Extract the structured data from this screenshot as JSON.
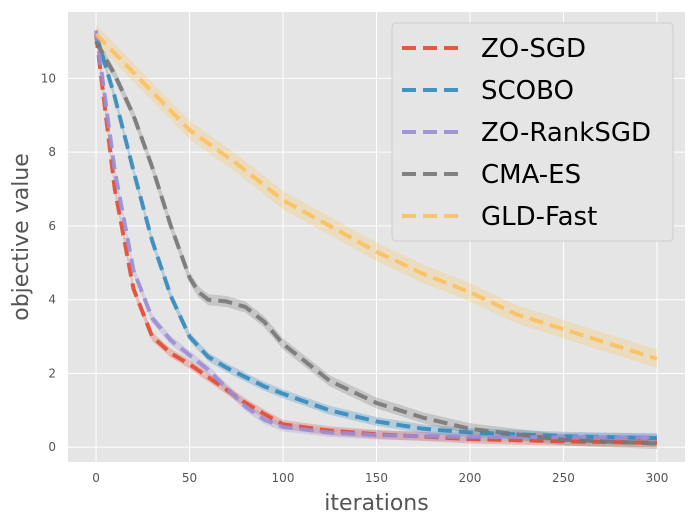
{
  "chart_data": {
    "type": "line",
    "title": "",
    "xlabel": "iterations",
    "ylabel": "objective value",
    "xlim": [
      -15,
      315
    ],
    "ylim": [
      -0.4,
      11.8
    ],
    "xticks": [
      0,
      50,
      100,
      150,
      200,
      250,
      300
    ],
    "yticks": [
      0,
      2,
      4,
      6,
      8,
      10
    ],
    "grid": true,
    "legend_position": "top-right",
    "series": [
      {
        "name": "ZO-SGD",
        "color": "#E24A33",
        "band": 0.12,
        "x": [
          0,
          10,
          20,
          30,
          40,
          50,
          60,
          70,
          80,
          90,
          100,
          125,
          150,
          175,
          200,
          250,
          300
        ],
        "values": [
          11.2,
          7.0,
          4.3,
          3.0,
          2.55,
          2.25,
          1.9,
          1.55,
          1.2,
          0.9,
          0.62,
          0.45,
          0.35,
          0.29,
          0.22,
          0.16,
          0.12
        ]
      },
      {
        "name": "SCOBO",
        "color": "#348ABD",
        "band": 0.12,
        "x": [
          0,
          10,
          20,
          30,
          40,
          50,
          60,
          70,
          80,
          90,
          100,
          125,
          150,
          175,
          200,
          250,
          300
        ],
        "values": [
          11.2,
          9.5,
          7.5,
          5.6,
          4.1,
          3.0,
          2.45,
          2.15,
          1.9,
          1.65,
          1.45,
          1.0,
          0.7,
          0.5,
          0.4,
          0.3,
          0.25
        ]
      },
      {
        "name": "ZO-RankSGD",
        "color": "#988ED5",
        "band": 0.12,
        "x": [
          0,
          10,
          20,
          30,
          40,
          50,
          60,
          70,
          80,
          90,
          100,
          125,
          150,
          175,
          200,
          250,
          300
        ],
        "values": [
          11.3,
          7.5,
          4.8,
          3.5,
          2.9,
          2.5,
          2.1,
          1.6,
          1.1,
          0.75,
          0.55,
          0.4,
          0.33,
          0.3,
          0.28,
          0.27,
          0.27
        ]
      },
      {
        "name": "CMA-ES",
        "color": "#777777",
        "band": 0.15,
        "x": [
          0,
          10,
          20,
          30,
          40,
          50,
          55,
          60,
          70,
          80,
          90,
          100,
          125,
          150,
          175,
          200,
          250,
          300
        ],
        "values": [
          11.0,
          10.1,
          9.0,
          7.6,
          6.0,
          4.6,
          4.2,
          4.0,
          3.95,
          3.8,
          3.4,
          2.8,
          1.8,
          1.2,
          0.8,
          0.5,
          0.2,
          0.1
        ]
      },
      {
        "name": "GLD-Fast",
        "color": "#FBC15E",
        "band": 0.25,
        "x": [
          0,
          25,
          50,
          75,
          100,
          125,
          150,
          175,
          200,
          225,
          250,
          275,
          300
        ],
        "values": [
          11.2,
          9.9,
          8.6,
          7.7,
          6.7,
          6.0,
          5.3,
          4.7,
          4.2,
          3.6,
          3.2,
          2.8,
          2.4
        ]
      }
    ]
  }
}
